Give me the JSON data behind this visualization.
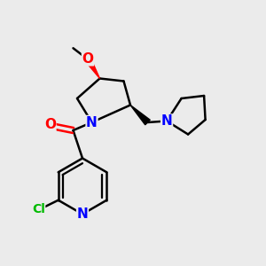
{
  "background_color": "#ebebeb",
  "bond_color": "#000000",
  "N_color": "#0000ff",
  "O_color": "#ff0000",
  "Cl_color": "#00bb00",
  "bond_width": 1.8,
  "figsize": [
    3.0,
    3.0
  ],
  "dpi": 100,
  "xlim": [
    0,
    10
  ],
  "ylim": [
    0,
    10
  ]
}
